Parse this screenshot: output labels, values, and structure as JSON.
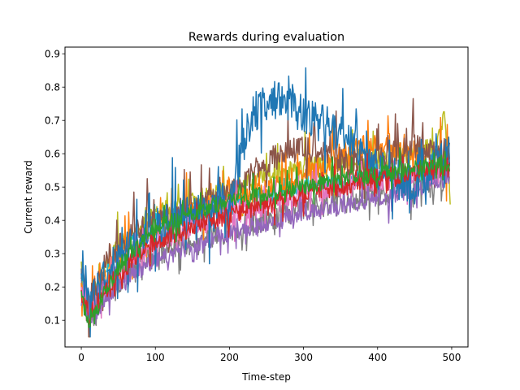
{
  "chart_data": {
    "type": "line",
    "title": "Rewards during evaluation",
    "xlabel": "Time-step",
    "ylabel": "Current reward",
    "xlim": [
      -22,
      522
    ],
    "ylim": [
      0.02,
      0.92
    ],
    "xticks": [
      0,
      100,
      200,
      300,
      400,
      500
    ],
    "yticks": [
      0.1,
      0.2,
      0.3,
      0.4,
      0.5,
      0.6,
      0.7,
      0.8,
      0.9
    ],
    "grid": false,
    "legend": "none",
    "steps": 500,
    "series": [
      {
        "color": "#bcbd22",
        "noise": 0.03,
        "spike": 0.09,
        "seed": 7,
        "knots": [
          [
            0,
            0.22
          ],
          [
            10,
            0.16
          ],
          [
            50,
            0.32
          ],
          [
            100,
            0.42
          ],
          [
            200,
            0.5
          ],
          [
            300,
            0.56
          ],
          [
            400,
            0.58
          ],
          [
            480,
            0.62
          ],
          [
            490,
            0.72
          ],
          [
            498,
            0.44
          ]
        ]
      },
      {
        "color": "#17becf",
        "noise": 0.02,
        "spike": 0.04,
        "seed": 11,
        "knots": [
          [
            0,
            0.24
          ],
          [
            10,
            0.15
          ],
          [
            50,
            0.32
          ],
          [
            100,
            0.4
          ],
          [
            200,
            0.46
          ],
          [
            300,
            0.5
          ],
          [
            400,
            0.53
          ],
          [
            497,
            0.55
          ]
        ]
      },
      {
        "color": "#7f7f7f",
        "noise": 0.04,
        "spike": 0.07,
        "seed": 13,
        "knots": [
          [
            0,
            0.25
          ],
          [
            10,
            0.12
          ],
          [
            50,
            0.22
          ],
          [
            100,
            0.3
          ],
          [
            200,
            0.37
          ],
          [
            300,
            0.44
          ],
          [
            400,
            0.48
          ],
          [
            497,
            0.53
          ]
        ]
      },
      {
        "color": "#ff7f0e",
        "noise": 0.035,
        "spike": 0.1,
        "seed": 17,
        "knots": [
          [
            0,
            0.2
          ],
          [
            10,
            0.13
          ],
          [
            50,
            0.3
          ],
          [
            100,
            0.38
          ],
          [
            200,
            0.46
          ],
          [
            300,
            0.52
          ],
          [
            350,
            0.6
          ],
          [
            400,
            0.64
          ],
          [
            450,
            0.6
          ],
          [
            497,
            0.58
          ]
        ]
      },
      {
        "color": "#8c564b",
        "noise": 0.04,
        "spike": 0.12,
        "seed": 19,
        "knots": [
          [
            0,
            0.26
          ],
          [
            10,
            0.16
          ],
          [
            50,
            0.32
          ],
          [
            100,
            0.4
          ],
          [
            200,
            0.48
          ],
          [
            250,
            0.58
          ],
          [
            300,
            0.62
          ],
          [
            350,
            0.58
          ],
          [
            400,
            0.58
          ],
          [
            450,
            0.62
          ],
          [
            497,
            0.6
          ]
        ]
      },
      {
        "color": "#e377c2",
        "noise": 0.035,
        "spike": 0.07,
        "seed": 23,
        "knots": [
          [
            0,
            0.21
          ],
          [
            10,
            0.12
          ],
          [
            50,
            0.26
          ],
          [
            100,
            0.34
          ],
          [
            200,
            0.42
          ],
          [
            300,
            0.48
          ],
          [
            400,
            0.52
          ],
          [
            497,
            0.55
          ]
        ]
      },
      {
        "color": "#9467bd",
        "noise": 0.025,
        "spike": 0.06,
        "seed": 29,
        "knots": [
          [
            0,
            0.18
          ],
          [
            10,
            0.1
          ],
          [
            50,
            0.2
          ],
          [
            100,
            0.28
          ],
          [
            200,
            0.36
          ],
          [
            300,
            0.42
          ],
          [
            400,
            0.46
          ],
          [
            497,
            0.52
          ]
        ]
      },
      {
        "color": "#1f77b4",
        "noise": 0.06,
        "spike": 0.14,
        "seed": 31,
        "knots": [
          [
            0,
            0.22
          ],
          [
            10,
            0.15
          ],
          [
            50,
            0.3
          ],
          [
            100,
            0.38
          ],
          [
            200,
            0.46
          ],
          [
            230,
            0.72
          ],
          [
            260,
            0.76
          ],
          [
            300,
            0.72
          ],
          [
            350,
            0.66
          ],
          [
            400,
            0.55
          ],
          [
            450,
            0.5
          ],
          [
            497,
            0.6
          ]
        ]
      },
      {
        "color": "#d62728",
        "noise": 0.03,
        "spike": 0.05,
        "seed": 37,
        "knots": [
          [
            0,
            0.19
          ],
          [
            10,
            0.11
          ],
          [
            50,
            0.24
          ],
          [
            100,
            0.34
          ],
          [
            200,
            0.42
          ],
          [
            300,
            0.48
          ],
          [
            400,
            0.53
          ],
          [
            497,
            0.56
          ]
        ]
      },
      {
        "color": "#2ca02c",
        "noise": 0.025,
        "spike": 0.06,
        "seed": 41,
        "knots": [
          [
            0,
            0.17
          ],
          [
            10,
            0.09
          ],
          [
            50,
            0.26
          ],
          [
            100,
            0.38
          ],
          [
            200,
            0.46
          ],
          [
            300,
            0.5
          ],
          [
            400,
            0.54
          ],
          [
            497,
            0.57
          ]
        ]
      }
    ]
  }
}
